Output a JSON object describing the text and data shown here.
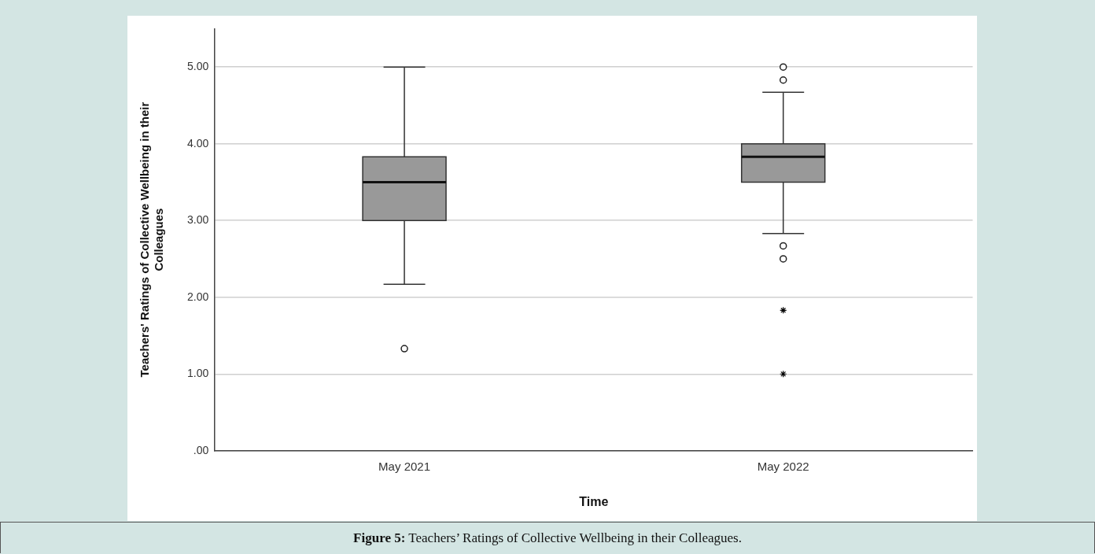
{
  "chart_data": {
    "type": "box",
    "xlabel": "Time",
    "ylabel": "Teachers' Ratings of Collective Wellbeing in their Colleagues",
    "categories": [
      "May 2021",
      "May 2022"
    ],
    "ylim": [
      0,
      5.5
    ],
    "yticks": [
      {
        "value": 0,
        "label": ".00"
      },
      {
        "value": 1,
        "label": "1.00"
      },
      {
        "value": 2,
        "label": "2.00"
      },
      {
        "value": 3,
        "label": "3.00"
      },
      {
        "value": 4,
        "label": "4.00"
      },
      {
        "value": 5,
        "label": "5.00"
      }
    ],
    "grid": "y",
    "legend": false,
    "series": [
      {
        "type": "box",
        "color": "#999999",
        "boxes": [
          {
            "low": 2.17,
            "q1": 3.0,
            "median": 3.5,
            "q3": 3.83,
            "high": 5.0,
            "outliers": [
              1.33
            ]
          },
          {
            "low": 2.83,
            "q1": 3.5,
            "median": 3.83,
            "q3": 4.0,
            "high": 4.67,
            "outliers": [
              5.0,
              4.83,
              2.67,
              2.5
            ]
          }
        ]
      },
      {
        "type": "scatter",
        "marker": "cross",
        "color": "#000000",
        "x": [
          "May 2022",
          "May 2022"
        ],
        "values": [
          1.83,
          1.0
        ]
      }
    ],
    "annotations": [
      "Figure 5: Teachers’ Ratings of Collective Wellbeing in their Colleagues."
    ]
  }
}
